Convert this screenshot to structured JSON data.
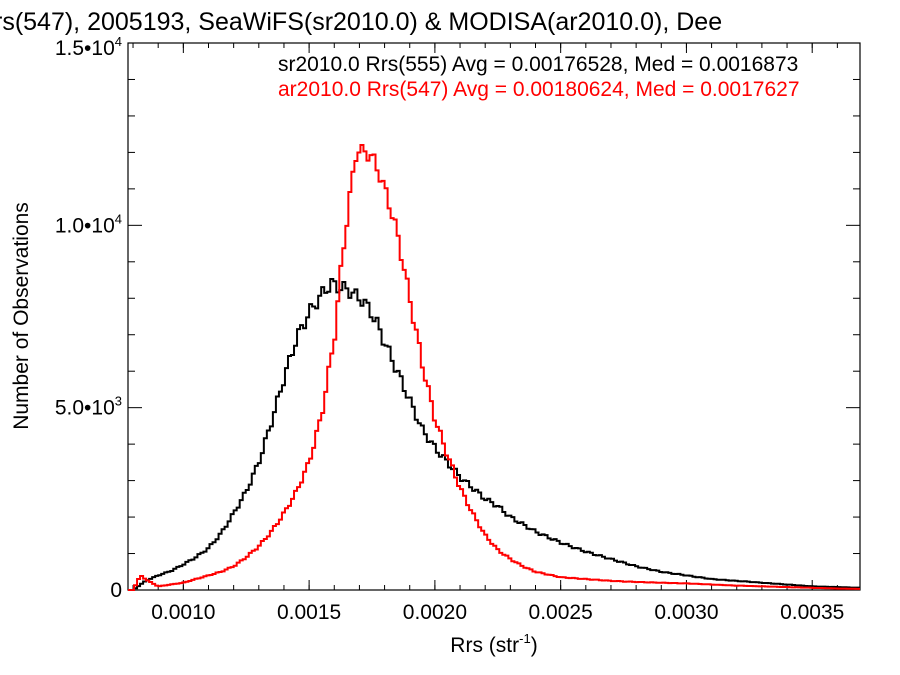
{
  "chart_data": {
    "type": "line",
    "title": "rs(547), 2005193, SeaWiFS(sr2010.0) & MODISA(ar2010.0), Dee",
    "xlabel": "Rrs (str",
    "xlabel_sup": "-1",
    "xlabel_close": ")",
    "ylabel": "Number of Observations",
    "xlim": [
      0.00078,
      0.00369
    ],
    "ylim": [
      0,
      15000
    ],
    "grid": false,
    "legend_position": "top-right",
    "x_ticks": [
      {
        "value": 0.001,
        "label": "0.0010"
      },
      {
        "value": 0.0015,
        "label": "0.0015"
      },
      {
        "value": 0.002,
        "label": "0.0020"
      },
      {
        "value": 0.0025,
        "label": "0.0025"
      },
      {
        "value": 0.003,
        "label": "0.0030"
      },
      {
        "value": 0.0035,
        "label": "0.0035"
      }
    ],
    "y_ticks": [
      {
        "value": 0,
        "mant": "0",
        "exp": ""
      },
      {
        "value": 5000,
        "mant": "5.0•10",
        "exp": "3"
      },
      {
        "value": 10000,
        "mant": "1.0•10",
        "exp": "4"
      },
      {
        "value": 15000,
        "mant": "1.5•10",
        "exp": "4"
      }
    ],
    "series": [
      {
        "name": "sr2010.0 Rrs(555) Avg = 0.00176528, Med = 0.0016873",
        "color": "#000000",
        "x": [
          0.0008,
          0.00085,
          0.0009,
          0.00095,
          0.001,
          0.00105,
          0.0011,
          0.00115,
          0.0012,
          0.00125,
          0.0013,
          0.00135,
          0.0014,
          0.00145,
          0.0015,
          0.00153,
          0.00156,
          0.00159,
          0.00162,
          0.00165,
          0.00168,
          0.00171,
          0.00174,
          0.00177,
          0.0018,
          0.00185,
          0.0019,
          0.00195,
          0.002,
          0.00205,
          0.0021,
          0.00215,
          0.0022,
          0.00225,
          0.0023,
          0.00235,
          0.0024,
          0.0025,
          0.0026,
          0.0027,
          0.0028,
          0.0029,
          0.003,
          0.0031,
          0.0032,
          0.0033,
          0.0034,
          0.0035,
          0.0036,
          0.00369
        ],
        "y": [
          0,
          250,
          400,
          520,
          700,
          900,
          1150,
          1550,
          2100,
          2700,
          3500,
          4600,
          5800,
          6900,
          7600,
          7900,
          8200,
          8400,
          8300,
          8250,
          8100,
          7950,
          7700,
          7300,
          6800,
          6000,
          5200,
          4400,
          3900,
          3500,
          3100,
          2800,
          2500,
          2300,
          2000,
          1800,
          1600,
          1300,
          1050,
          850,
          650,
          500,
          400,
          300,
          250,
          200,
          150,
          100,
          80,
          60
        ]
      },
      {
        "name": "ar2010.0 Rrs(547) Avg = 0.00180624, Med = 0.0017627",
        "color": "#ff0000",
        "x": [
          0.0008,
          0.00083,
          0.00086,
          0.0009,
          0.00095,
          0.001,
          0.00105,
          0.0011,
          0.00115,
          0.0012,
          0.00125,
          0.0013,
          0.00135,
          0.0014,
          0.00145,
          0.0015,
          0.00155,
          0.0016,
          0.00163,
          0.00166,
          0.00169,
          0.00172,
          0.00175,
          0.00178,
          0.00181,
          0.00185,
          0.0019,
          0.00195,
          0.002,
          0.00205,
          0.0021,
          0.00215,
          0.0022,
          0.00225,
          0.0023,
          0.00235,
          0.0024,
          0.0025,
          0.0026,
          0.0027,
          0.0028,
          0.0029,
          0.003,
          0.0031,
          0.0032,
          0.0033,
          0.0034,
          0.0035,
          0.0036,
          0.00369
        ],
        "y": [
          0,
          400,
          250,
          100,
          150,
          200,
          300,
          400,
          500,
          650,
          900,
          1200,
          1600,
          2100,
          2700,
          3500,
          4800,
          6900,
          9000,
          10700,
          12100,
          12000,
          11900,
          11400,
          10800,
          9800,
          8000,
          6200,
          4700,
          3700,
          2800,
          2100,
          1500,
          1100,
          850,
          650,
          500,
          350,
          300,
          250,
          220,
          200,
          180,
          150,
          120,
          100,
          80,
          60,
          40,
          30
        ]
      }
    ]
  }
}
